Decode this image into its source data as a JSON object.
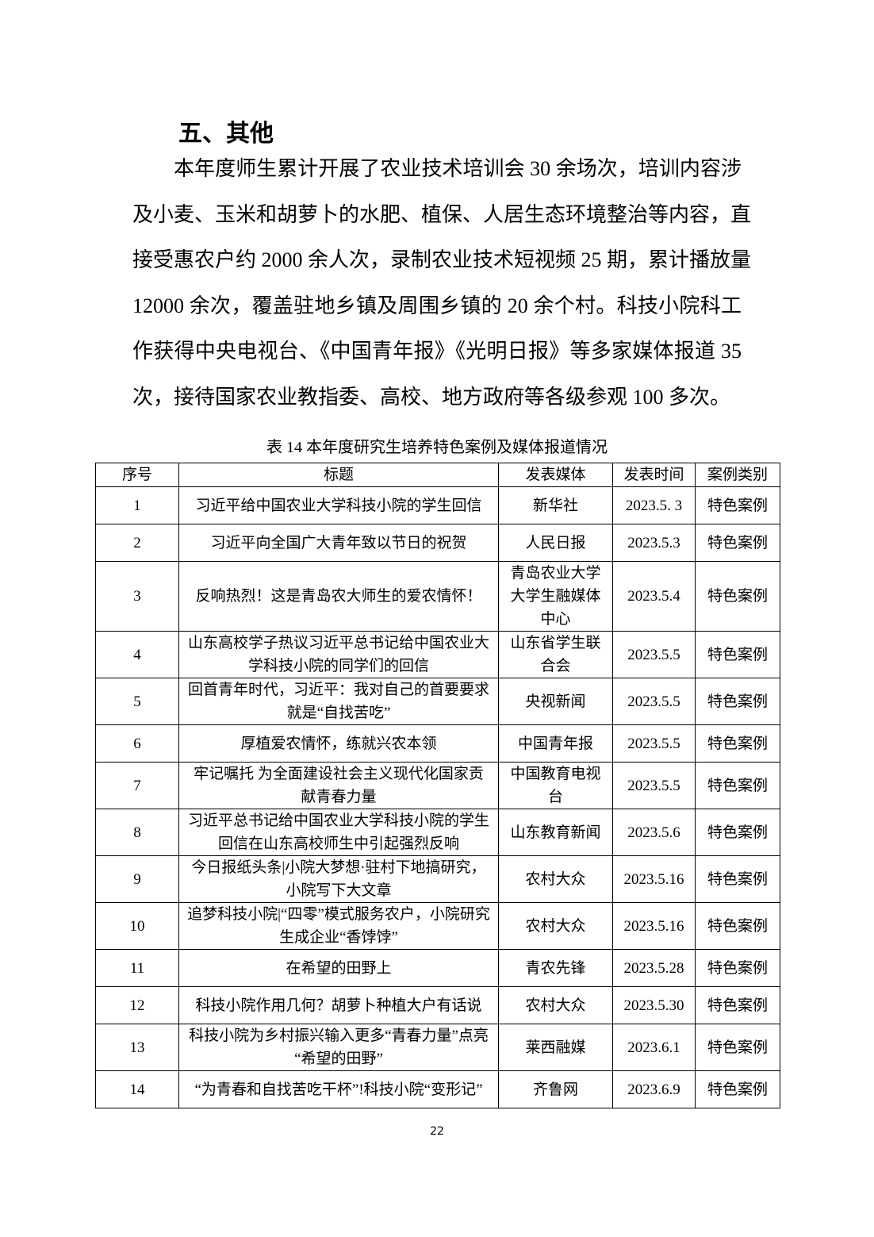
{
  "section": {
    "heading": "五、其他",
    "paragraph_lines": [
      "本年度师生累计开展了农业技术培训会 30 余场次，培训内容涉",
      "及小麦、玉米和胡萝卜的水肥、植保、人居生态环境整治等内容，直",
      "接受惠农户约 2000 余人次，录制农业技术短视频 25 期，累计播放量",
      "12000 余次，覆盖驻地乡镇及周围乡镇的 20 余个村。科技小院科工",
      "作获得中央电视台、《中国青年报》《光明日报》等多家媒体报道 35",
      "次，接待国家农业教指委、高校、地方政府等各级参观 100 多次。"
    ]
  },
  "table": {
    "caption": "表 14 本年度研究生培养特色案例及媒体报道情况",
    "headers": [
      "序号",
      "标题",
      "发表媒体",
      "发表时间",
      "案例类别"
    ],
    "rows": [
      [
        "1",
        "习近平给中国农业大学科技小院的学生回信",
        "新华社",
        "2023.5. 3",
        "特色案例"
      ],
      [
        "2",
        "习近平向全国广大青年致以节日的祝贺",
        "人民日报",
        "2023.5.3",
        "特色案例"
      ],
      [
        "3",
        "反响热烈！这是青岛农大师生的爱农情怀！",
        "青岛农业大学大学生融媒体中心",
        "2023.5.4",
        "特色案例"
      ],
      [
        "4",
        "山东高校学子热议习近平总书记给中国农业大学科技小院的同学们的回信",
        "山东省学生联合会",
        "2023.5.5",
        "特色案例"
      ],
      [
        "5",
        "回首青年时代，习近平：我对自己的首要要求就是“自找苦吃”",
        "央视新闻",
        "2023.5.5",
        "特色案例"
      ],
      [
        "6",
        "厚植爱农情怀，练就兴农本领",
        "中国青年报",
        "2023.5.5",
        "特色案例"
      ],
      [
        "7",
        "牢记嘱托 为全面建设社会主义现代化国家贡献青春力量",
        "中国教育电视台",
        "2023.5.5",
        "特色案例"
      ],
      [
        "8",
        "习近平总书记给中国农业大学科技小院的学生回信在山东高校师生中引起强烈反响",
        "山东教育新闻",
        "2023.5.6",
        "特色案例"
      ],
      [
        "9",
        "今日报纸头条|小院大梦想·驻村下地搞研究，小院写下大文章",
        "农村大众",
        "2023.5.16",
        "特色案例"
      ],
      [
        "10",
        "追梦科技小院|“四零”模式服务农户，小院研究生成企业“香饽饽”",
        "农村大众",
        "2023.5.16",
        "特色案例"
      ],
      [
        "11",
        "在希望的田野上",
        "青农先锋",
        "2023.5.28",
        "特色案例"
      ],
      [
        "12",
        "科技小院作用几何？胡萝卜种植大户有话说",
        "农村大众",
        "2023.5.30",
        "特色案例"
      ],
      [
        "13",
        "科技小院为乡村振兴输入更多“青春力量”点亮“希望的田野”",
        "莱西融媒",
        "2023.6.1",
        "特色案例"
      ],
      [
        "14",
        "“为青春和自找苦吃干杯”!科技小院“变形记”",
        "齐鲁网",
        "2023.6.9",
        "特色案例"
      ]
    ]
  },
  "footer": {
    "page_number": "22"
  }
}
